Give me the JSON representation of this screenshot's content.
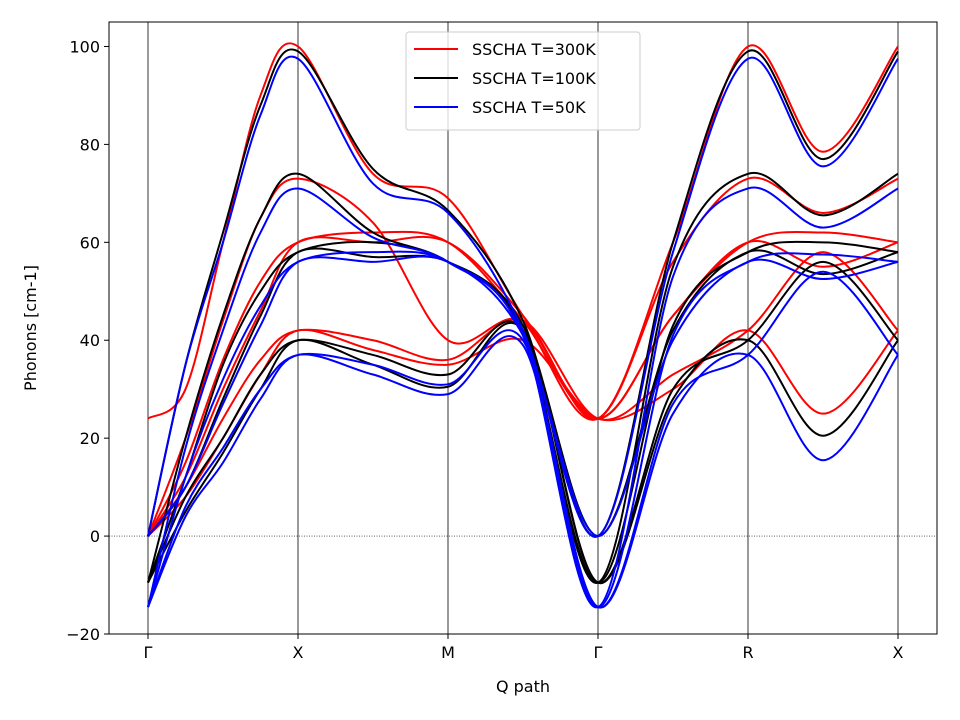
{
  "chart_data": {
    "type": "line",
    "xlabel": "Q path",
    "ylabel": "Phonons [cm-1]",
    "ylim": [
      -20,
      105
    ],
    "y_ticks": [
      -20,
      0,
      20,
      40,
      60,
      80,
      100
    ],
    "y_tick_labels": [
      "−20",
      "0",
      "20",
      "40",
      "60",
      "80",
      "100"
    ],
    "x_ticks": [
      0,
      1,
      2,
      3,
      4,
      5
    ],
    "x_tick_labels": [
      "Γ",
      "X",
      "M",
      "Γ",
      "R",
      "X"
    ],
    "xlim": [
      -0.26,
      5.26
    ],
    "zero_line": true,
    "vertical_gridlines": true,
    "legend": {
      "placement": "top-center"
    },
    "series": [
      {
        "name": "SSCHA T=300K",
        "color": "#ff0000",
        "bands": [
          {
            "x": [
              0,
              0.25,
              0.5,
              0.75,
              1,
              1.5,
              2,
              2.5,
              3,
              3.5,
              4,
              4.5,
              5
            ],
            "y": [
              24,
              30,
              60,
              90,
              100,
              74,
              69,
              45,
              24,
              60,
              100,
              78.5,
              100
            ]
          },
          {
            "x": [
              0,
              0.25,
              0.5,
              0.75,
              1,
              1.5,
              2,
              2.5,
              3,
              3.5,
              4,
              4.5,
              5
            ],
            "y": [
              0,
              20,
              44,
              65,
              73,
              64,
              40,
              44,
              24,
              56,
              73,
              66,
              73
            ]
          },
          {
            "x": [
              0,
              0.25,
              0.5,
              0.75,
              1,
              1.5,
              2,
              2.5,
              3,
              3.5,
              4,
              4.5,
              5
            ],
            "y": [
              0,
              15,
              36,
              52,
              60,
              62,
              60,
              44,
              24,
              45,
              60,
              62,
              60
            ]
          },
          {
            "x": [
              0,
              0.25,
              0.5,
              0.75,
              1,
              1.5,
              2,
              2.5,
              3,
              3.5,
              4,
              4.5,
              5
            ],
            "y": [
              0,
              12,
              30,
              46,
              60,
              60,
              60,
              45,
              24,
              45,
              60,
              55,
              60
            ]
          },
          {
            "x": [
              0,
              0.25,
              0.5,
              0.75,
              1,
              1.5,
              2,
              2.5,
              3,
              3.5,
              4,
              4.5,
              5
            ],
            "y": [
              0,
              10,
              24,
              36,
              42,
              40,
              36,
              44,
              24,
              33,
              42,
              58,
              42
            ]
          },
          {
            "x": [
              0,
              0.25,
              0.5,
              0.75,
              1,
              1.5,
              2,
              2.5,
              3,
              3.5,
              4,
              4.5,
              5
            ],
            "y": [
              0,
              8,
              20,
              33,
              42,
              38,
              35,
              40,
              24,
              30,
              42,
              25,
              42
            ]
          }
        ]
      },
      {
        "name": "SSCHA T=100K",
        "color": "#000000",
        "bands": [
          {
            "x": [
              0,
              0.25,
              0.5,
              0.75,
              1,
              1.5,
              2,
              2.5,
              3,
              3.5,
              4,
              4.5,
              5
            ],
            "y": [
              0,
              35,
              62,
              88,
              99,
              75,
              66.5,
              44,
              0,
              60,
              99,
              77,
              99
            ]
          },
          {
            "x": [
              0,
              0.25,
              0.5,
              0.75,
              1,
              1.5,
              2,
              2.5,
              3,
              3.5,
              4,
              4.5,
              5
            ],
            "y": [
              -9.5,
              20,
              45,
              65,
              74,
              62,
              56,
              42,
              -9.5,
              55,
              74,
              65.5,
              74
            ]
          },
          {
            "x": [
              0,
              0.25,
              0.5,
              0.75,
              1,
              1.5,
              2,
              2.5,
              3,
              3.5,
              4,
              4.5,
              5
            ],
            "y": [
              -9.5,
              12,
              35,
              50,
              58,
              60,
              56,
              42,
              -9.5,
              43,
              58,
              60,
              58
            ]
          },
          {
            "x": [
              0,
              0.25,
              0.5,
              0.75,
              1,
              1.5,
              2,
              2.5,
              3,
              3.5,
              4,
              4.5,
              5
            ],
            "y": [
              0,
              10,
              28,
              45,
              58,
              57,
              56,
              43,
              0,
              42,
              58,
              53.5,
              58
            ]
          },
          {
            "x": [
              0,
              0.25,
              0.5,
              0.75,
              1,
              1.5,
              2,
              2.5,
              3,
              3.5,
              4,
              4.5,
              5
            ],
            "y": [
              -9.5,
              8,
              20,
              33,
              40,
              37,
              33,
              42,
              -9.5,
              30,
              40,
              56,
              40
            ]
          },
          {
            "x": [
              0,
              0.25,
              0.5,
              0.75,
              1,
              1.5,
              2,
              2.5,
              3,
              3.5,
              4,
              4.5,
              5
            ],
            "y": [
              -9.5,
              5,
              17,
              30,
              40,
              35,
              30.5,
              42,
              -9.5,
              28,
              40,
              20.5,
              40
            ]
          }
        ]
      },
      {
        "name": "SSCHA T=50K",
        "color": "#0000ff",
        "bands": [
          {
            "x": [
              0,
              0.25,
              0.5,
              0.75,
              1,
              1.5,
              2,
              2.5,
              3,
              3.5,
              4,
              4.5,
              5
            ],
            "y": [
              0,
              35,
              60,
              86,
              97.5,
              72,
              66,
              42,
              0,
              58,
              97.5,
              75.5,
              97.5
            ]
          },
          {
            "x": [
              0,
              0.25,
              0.5,
              0.75,
              1,
              1.5,
              2,
              2.5,
              3,
              3.5,
              4,
              4.5,
              5
            ],
            "y": [
              -14.5,
              18,
              42,
              62,
              71,
              61,
              56,
              41,
              -14.5,
              53,
              71,
              63,
              71
            ]
          },
          {
            "x": [
              0,
              0.25,
              0.5,
              0.75,
              1,
              1.5,
              2,
              2.5,
              3,
              3.5,
              4,
              4.5,
              5
            ],
            "y": [
              -14.5,
              12,
              32,
              47,
              56,
              58,
              56,
              41,
              -14.5,
              41,
              56,
              57.5,
              56
            ]
          },
          {
            "x": [
              0,
              0.25,
              0.5,
              0.75,
              1,
              1.5,
              2,
              2.5,
              3,
              3.5,
              4,
              4.5,
              5
            ],
            "y": [
              0,
              10,
              27,
              43,
              56,
              56,
              56,
              41,
              0,
              40,
              56,
              52.5,
              56
            ]
          },
          {
            "x": [
              0,
              0.25,
              0.5,
              0.75,
              1,
              1.5,
              2,
              2.5,
              3,
              3.5,
              4,
              4.5,
              5
            ],
            "y": [
              -14.5,
              6,
              18,
              30,
              37,
              35,
              31,
              40,
              -14.5,
              27,
              37,
              54,
              37
            ]
          },
          {
            "x": [
              0,
              0.25,
              0.5,
              0.75,
              1,
              1.5,
              2,
              2.5,
              3,
              3.5,
              4,
              4.5,
              5
            ],
            "y": [
              -14.5,
              4,
              15,
              28,
              37,
              33,
              29,
              39,
              -14.5,
              25,
              37,
              15.5,
              37
            ]
          }
        ]
      }
    ]
  }
}
